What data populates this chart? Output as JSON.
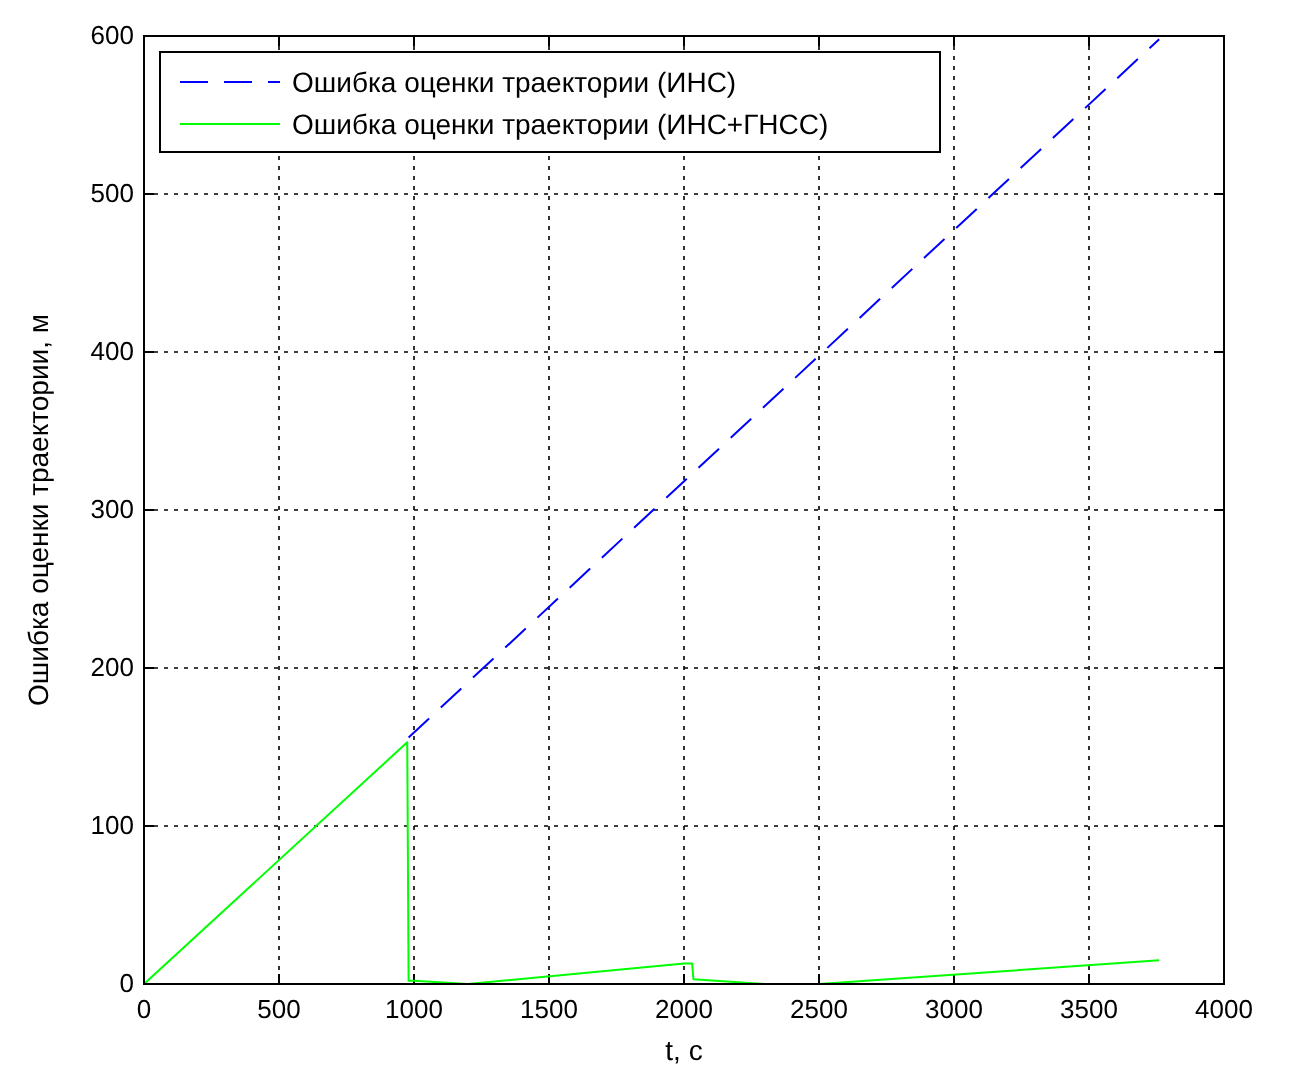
{
  "chart_data": {
    "type": "line",
    "xlabel": "t, c",
    "ylabel": "Ошибка оценки траектории, м",
    "xlim": [
      0,
      4000
    ],
    "ylim": [
      0,
      600
    ],
    "xticks": [
      0,
      500,
      1000,
      1500,
      2000,
      2500,
      3000,
      3500,
      4000
    ],
    "yticks": [
      0,
      100,
      200,
      300,
      400,
      500,
      600
    ],
    "grid": true,
    "legend": "top left",
    "series": [
      {
        "name": "Ошибка оценки траектории (ИНС)",
        "color": "#0000ff",
        "line_style": "dashed",
        "x": [
          980,
          3760
        ],
        "values": [
          156,
          598
        ]
      },
      {
        "name": "Ошибка оценки траектории (ИНС+ГНСС)",
        "color": "#00ff00",
        "line_style": "solid",
        "x": [
          0,
          975,
          980,
          1000,
          1200,
          2000,
          2030,
          2035,
          2300,
          2500,
          3760
        ],
        "values": [
          0,
          153,
          2,
          2,
          0,
          13,
          13,
          3,
          0,
          0,
          15
        ]
      }
    ]
  }
}
